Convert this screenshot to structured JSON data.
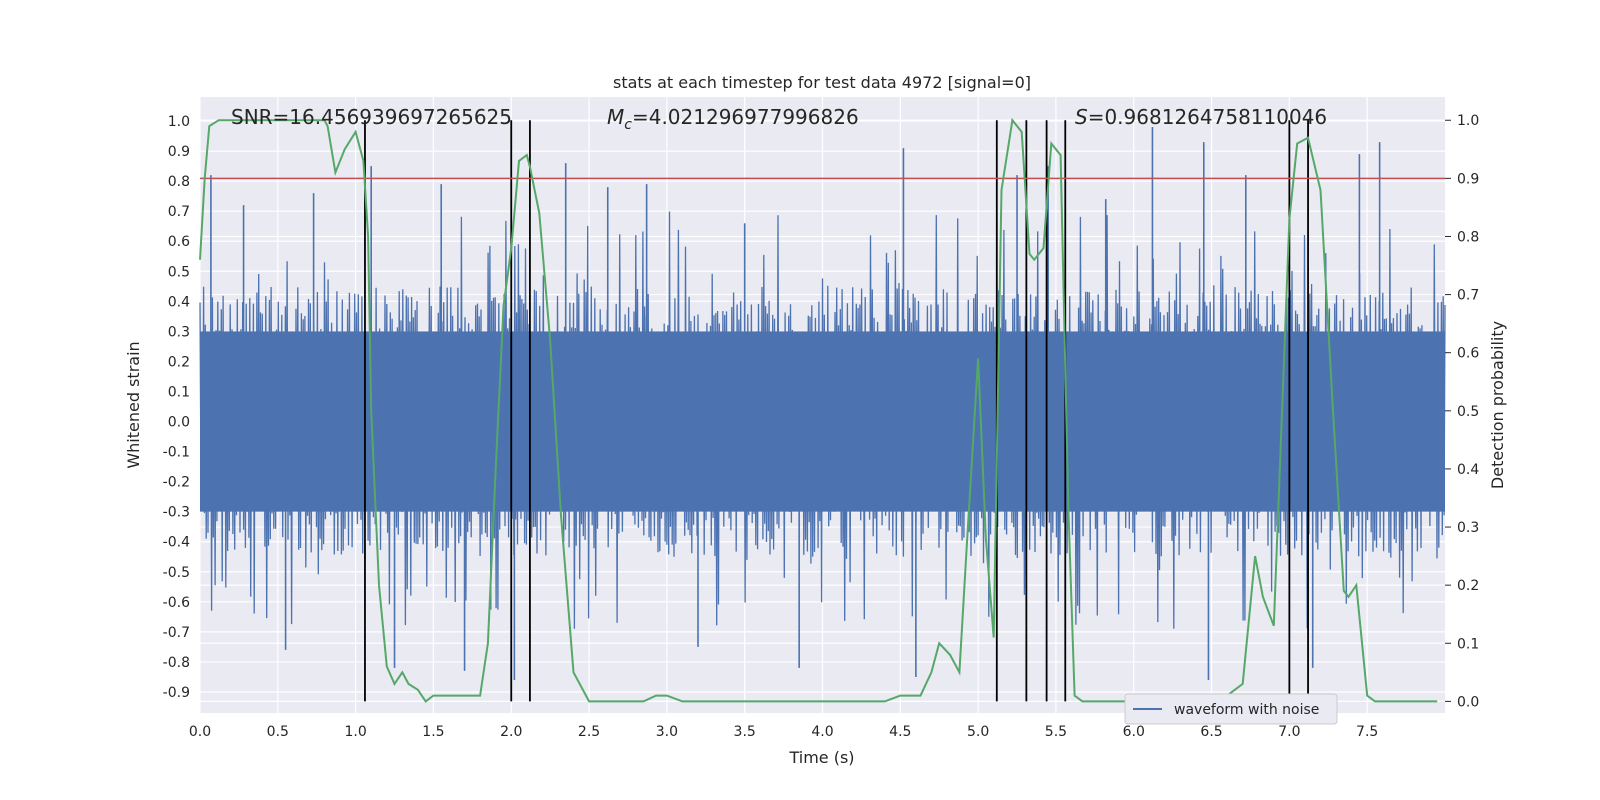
{
  "chart_data": {
    "type": "line",
    "title": "stats at each timestep for test data 4972 [signal=0]",
    "xlabel": "Time (s)",
    "ylabel_left": "Whitened strain",
    "ylabel_right": "Detection probability",
    "xlim": [
      0.0,
      8.0
    ],
    "ylim_left": [
      -0.97,
      1.08
    ],
    "ylim_right": [
      -0.02,
      1.04
    ],
    "x_ticks": [
      "0.0",
      "0.5",
      "1.0",
      "1.5",
      "2.0",
      "2.5",
      "3.0",
      "3.5",
      "4.0",
      "4.5",
      "5.0",
      "5.5",
      "6.0",
      "6.5",
      "7.0",
      "7.5"
    ],
    "y_left_ticks": [
      "1.0",
      "0.9",
      "0.8",
      "0.7",
      "0.6",
      "0.5",
      "0.4",
      "0.3",
      "0.2",
      "0.1",
      "0.0",
      "-0.1",
      "-0.2",
      "-0.3",
      "-0.4",
      "-0.5",
      "-0.6",
      "-0.7",
      "-0.8",
      "-0.9"
    ],
    "y_right_ticks": [
      "1.0",
      "0.9",
      "0.8",
      "0.7",
      "0.6",
      "0.5",
      "0.4",
      "0.3",
      "0.2",
      "0.1",
      "0.0"
    ],
    "grid": true,
    "legend_position": "bottom-right",
    "annotations": {
      "snr": "SNR=16.456939697265625",
      "mc_symbol": "M",
      "mc_sub": "c",
      "mc_value": "=4.021296977996826",
      "s_symbol": "S",
      "s_value": "=0.9681264758110046"
    },
    "threshold": {
      "y_right": 0.9,
      "color": "#c44e52"
    },
    "vertical_lines": [
      1.06,
      2.0,
      2.12,
      5.12,
      5.31,
      5.44,
      5.56,
      7.0,
      7.12
    ],
    "series": [
      {
        "name": "waveform with noise",
        "axis": "left",
        "color": "#4c72b0",
        "description": "noisy whitened strain, approx. uniform amplitude",
        "envelope": {
          "x": [
            0.0,
            8.0
          ],
          "typical_max": 0.45,
          "typical_min": -0.45
        },
        "peaks": [
          {
            "x": 0.07,
            "y": 0.82
          },
          {
            "x": 0.28,
            "y": 0.72
          },
          {
            "x": 0.55,
            "y": -0.76
          },
          {
            "x": 0.73,
            "y": 0.76
          },
          {
            "x": 1.1,
            "y": 0.85
          },
          {
            "x": 1.25,
            "y": -0.82
          },
          {
            "x": 1.55,
            "y": 0.79
          },
          {
            "x": 1.7,
            "y": -0.83
          },
          {
            "x": 2.02,
            "y": -0.86
          },
          {
            "x": 2.35,
            "y": 0.86
          },
          {
            "x": 2.62,
            "y": 0.78
          },
          {
            "x": 2.87,
            "y": 0.79
          },
          {
            "x": 3.2,
            "y": -0.75
          },
          {
            "x": 3.5,
            "y": 0.66
          },
          {
            "x": 3.85,
            "y": -0.82
          },
          {
            "x": 4.52,
            "y": 0.91
          },
          {
            "x": 4.6,
            "y": -0.85
          },
          {
            "x": 5.25,
            "y": 0.82
          },
          {
            "x": 5.45,
            "y": 0.85
          },
          {
            "x": 5.82,
            "y": 0.74
          },
          {
            "x": 6.12,
            "y": 0.98
          },
          {
            "x": 6.45,
            "y": 0.93
          },
          {
            "x": 6.48,
            "y": -0.86
          },
          {
            "x": 6.72,
            "y": 0.82
          },
          {
            "x": 7.15,
            "y": -0.82
          },
          {
            "x": 7.45,
            "y": 0.89
          },
          {
            "x": 7.58,
            "y": 0.93
          }
        ]
      },
      {
        "name": "Detection probability",
        "axis": "right",
        "color": "#55a868",
        "x": [
          0.0,
          0.03,
          0.06,
          0.12,
          0.2,
          0.4,
          0.6,
          0.8,
          0.82,
          0.87,
          0.93,
          1.0,
          1.05,
          1.08,
          1.1,
          1.15,
          1.2,
          1.25,
          1.3,
          1.34,
          1.4,
          1.45,
          1.5,
          1.6,
          1.7,
          1.8,
          1.85,
          1.9,
          1.95,
          2.0,
          2.05,
          2.1,
          2.12,
          2.18,
          2.25,
          2.32,
          2.4,
          2.5,
          2.7,
          2.85,
          2.93,
          3.0,
          3.1,
          3.3,
          3.5,
          3.7,
          4.0,
          4.2,
          4.4,
          4.5,
          4.57,
          4.63,
          4.7,
          4.75,
          4.82,
          4.88,
          4.93,
          5.0,
          5.05,
          5.1,
          5.15,
          5.22,
          5.28,
          5.33,
          5.36,
          5.42,
          5.47,
          5.53,
          5.58,
          5.62,
          5.67,
          5.72,
          5.8,
          6.0,
          6.5,
          6.6,
          6.7,
          6.78,
          6.83,
          6.9,
          6.95,
          7.0,
          7.05,
          7.12,
          7.2,
          7.28,
          7.35,
          7.38,
          7.43,
          7.5,
          7.55,
          7.6,
          7.7,
          7.8,
          7.95
        ],
        "y": [
          0.76,
          0.9,
          0.99,
          1.0,
          1.0,
          1.0,
          1.0,
          1.0,
          0.99,
          0.91,
          0.95,
          0.98,
          0.93,
          0.8,
          0.5,
          0.2,
          0.06,
          0.03,
          0.05,
          0.03,
          0.02,
          0.0,
          0.01,
          0.01,
          0.01,
          0.01,
          0.1,
          0.4,
          0.68,
          0.78,
          0.93,
          0.94,
          0.92,
          0.84,
          0.62,
          0.32,
          0.05,
          0.0,
          0.0,
          0.0,
          0.01,
          0.01,
          0.0,
          0.0,
          0.0,
          0.0,
          0.0,
          0.0,
          0.0,
          0.01,
          0.01,
          0.01,
          0.05,
          0.1,
          0.08,
          0.05,
          0.28,
          0.59,
          0.28,
          0.11,
          0.88,
          1.0,
          0.98,
          0.77,
          0.76,
          0.78,
          0.96,
          0.94,
          0.33,
          0.01,
          0.0,
          0.0,
          0.0,
          0.0,
          0.0,
          0.01,
          0.03,
          0.25,
          0.18,
          0.13,
          0.48,
          0.83,
          0.96,
          0.97,
          0.88,
          0.5,
          0.19,
          0.18,
          0.2,
          0.01,
          0.0,
          0.0,
          0.0,
          0.0,
          0.0
        ]
      }
    ]
  }
}
